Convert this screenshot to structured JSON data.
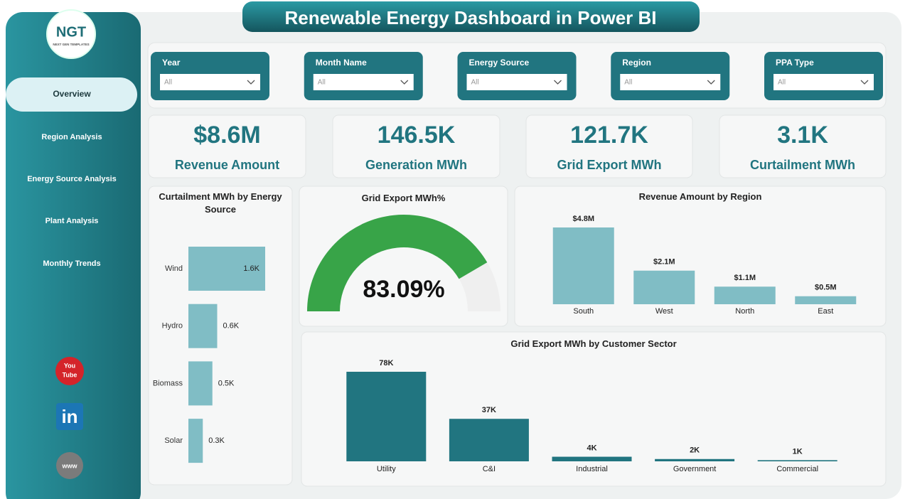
{
  "header": {
    "title": "Renewable Energy Dashboard in Power BI"
  },
  "logo": {
    "text": "NGT",
    "subtitle": "NEXT GEN TEMPLATES"
  },
  "nav": [
    "Overview",
    "Region Analysis",
    "Energy Source Analysis",
    "Plant Analysis",
    "Monthly Trends"
  ],
  "social": {
    "youtube": [
      "You",
      "Tube"
    ],
    "linkedin": "in",
    "web": "www"
  },
  "filters": [
    {
      "label": "Year",
      "value": "All"
    },
    {
      "label": "Month Name",
      "value": "All"
    },
    {
      "label": "Energy Source",
      "value": "All"
    },
    {
      "label": "Region",
      "value": "All"
    },
    {
      "label": "PPA Type",
      "value": "All"
    }
  ],
  "kpis": [
    {
      "value": "$8.6M",
      "label": "Revenue Amount"
    },
    {
      "value": "146.5K",
      "label": "Generation MWh"
    },
    {
      "value": "121.7K",
      "label": "Grid Export MWh"
    },
    {
      "value": "3.1K",
      "label": "Curtailment MWh"
    }
  ],
  "chart_data": [
    {
      "type": "hbar",
      "title": "Curtailment MWh by Energy Source",
      "categories": [
        "Wind",
        "Hydro",
        "Biomass",
        "Solar"
      ],
      "values": [
        1600,
        600,
        500,
        300
      ],
      "value_labels": [
        "1.6K",
        "0.6K",
        "0.5K",
        "0.3K"
      ],
      "color": "#80bdc5"
    },
    {
      "type": "gauge",
      "title": "Grid Export MWh%",
      "values": [
        83.09
      ],
      "value_labels": [
        "83.09%"
      ],
      "ylim": [
        0,
        100
      ],
      "color": "#38a448",
      "track_color": "#efefef"
    },
    {
      "type": "bar",
      "title": "Revenue Amount by Region",
      "categories": [
        "South",
        "West",
        "North",
        "East"
      ],
      "values": [
        4800000,
        2100000,
        1100000,
        500000
      ],
      "value_labels": [
        "$4.8M",
        "$2.1M",
        "$1.1M",
        "$0.5M"
      ],
      "color": "#80bdc5"
    },
    {
      "type": "bar",
      "title": "Grid Export MWh by Customer Sector",
      "categories": [
        "Utility",
        "C&I",
        "Industrial",
        "Government",
        "Commercial"
      ],
      "values": [
        78000,
        37000,
        4000,
        2000,
        1000
      ],
      "value_labels": [
        "78K",
        "37K",
        "4K",
        "2K",
        "1K"
      ],
      "color": "#217580"
    }
  ]
}
